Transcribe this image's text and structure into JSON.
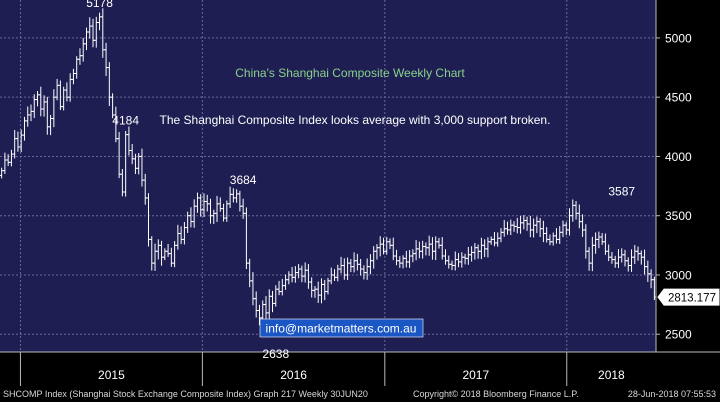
{
  "chart_data": {
    "type": "bar",
    "style": "ohlc",
    "title": "China's Shanghai Composite Weekly Chart",
    "subtitle": "The Shanghai Composite Index looks average with 3,000 support broken.",
    "annotation_link": "info@marketmatters.com.au",
    "xlabel": "",
    "ylabel": "",
    "ylim": [
      2350,
      5320
    ],
    "y_ticks": [
      "2500",
      "3000",
      "3500",
      "4000",
      "4500",
      "5000"
    ],
    "x_ticks": [
      "2015",
      "2016",
      "2017",
      "2018"
    ],
    "grid": true,
    "last_price": "2813.177",
    "peak_labels": [
      {
        "label": "5178",
        "week": 30,
        "value": 5178
      },
      {
        "label": "4184",
        "week": 38,
        "value": 4184
      },
      {
        "label": "3684",
        "week": 74,
        "value": 3684
      },
      {
        "label": "2638",
        "week": 84,
        "value": 2638
      },
      {
        "label": "3587",
        "week": 190,
        "value": 3587
      }
    ],
    "x_start": "2014-11-21",
    "x_end": "2018-06-29",
    "closes": [
      3880,
      3970,
      3950,
      4020,
      4150,
      4080,
      4180,
      4300,
      4350,
      4380,
      4480,
      4520,
      4400,
      4460,
      4250,
      4320,
      4500,
      4600,
      4420,
      4560,
      4500,
      4650,
      4700,
      4820,
      4850,
      4950,
      5050,
      5100,
      4980,
      5130,
      5178,
      4900,
      4750,
      4500,
      4350,
      4150,
      3850,
      3700,
      4184,
      4050,
      3980,
      3900,
      4000,
      3800,
      3650,
      3300,
      3100,
      3200,
      3250,
      3150,
      3200,
      3180,
      3100,
      3250,
      3350,
      3300,
      3400,
      3500,
      3450,
      3580,
      3650,
      3550,
      3620,
      3600,
      3500,
      3520,
      3600,
      3560,
      3480,
      3600,
      3680,
      3650,
      3684,
      3580,
      3520,
      3100,
      2950,
      2800,
      2700,
      2638,
      2750,
      2680,
      2820,
      2760,
      2880,
      2860,
      2910,
      2960,
      3000,
      2980,
      3020,
      3050,
      2990,
      3040,
      2940,
      2870,
      2880,
      2830,
      2920,
      2860,
      2950,
      3000,
      2980,
      3050,
      3080,
      3000,
      3100,
      3070,
      3120,
      3090,
      3050,
      3020,
      3070,
      3120,
      3200,
      3230,
      3260,
      3200,
      3280,
      3250,
      3160,
      3120,
      3100,
      3140,
      3110,
      3160,
      3180,
      3220,
      3200,
      3240,
      3230,
      3260,
      3200,
      3280,
      3250,
      3160,
      3120,
      3090,
      3080,
      3130,
      3110,
      3150,
      3140,
      3170,
      3190,
      3230,
      3200,
      3250,
      3220,
      3280,
      3300,
      3270,
      3310,
      3360,
      3390,
      3380,
      3420,
      3410,
      3400,
      3440,
      3460,
      3430,
      3380,
      3420,
      3450,
      3390,
      3350,
      3300,
      3280,
      3330,
      3300,
      3360,
      3420,
      3380,
      3500,
      3587,
      3520,
      3450,
      3380,
      3200,
      3100,
      3250,
      3300,
      3320,
      3280,
      3200,
      3150,
      3130,
      3100,
      3150,
      3170,
      3120,
      3080,
      3150,
      3200,
      3180,
      3150,
      3070,
      3010,
      2960,
      2813.177
    ]
  },
  "footer": {
    "left": "SHCOMP Index (Shanghai Stock Exchange Composite Index) Graph 217  Weekly 30JUN20",
    "middle": "Copyright© 2018 Bloomberg Finance L.P.",
    "right": "28-Jun-2018 07:55:53"
  },
  "colors": {
    "plot_bg": "#1e1e52",
    "grid": "#6a6a96",
    "bars": "#ffffff",
    "title": "#8ad18a",
    "subtitle": "#ffffff",
    "link_bg": "#1a56c4",
    "axis_text": "#ffffff"
  }
}
